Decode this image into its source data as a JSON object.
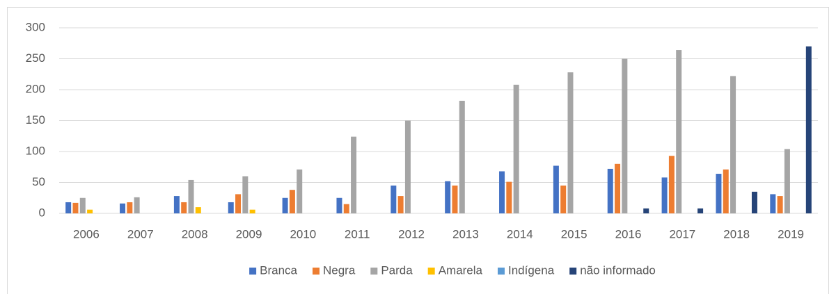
{
  "chart_data": {
    "type": "bar",
    "categories": [
      "2006",
      "2007",
      "2008",
      "2009",
      "2010",
      "2011",
      "2012",
      "2013",
      "2014",
      "2015",
      "2016",
      "2017",
      "2018",
      "2019"
    ],
    "series": [
      {
        "name": "Branca",
        "color": "#4472c4",
        "values": [
          18,
          16,
          28,
          18,
          25,
          25,
          45,
          52,
          68,
          77,
          72,
          58,
          64,
          31
        ]
      },
      {
        "name": "Negra",
        "color": "#ed7d31",
        "values": [
          17,
          18,
          18,
          31,
          38,
          15,
          28,
          45,
          51,
          45,
          80,
          93,
          71,
          28
        ]
      },
      {
        "name": "Parda",
        "color": "#a5a5a5",
        "values": [
          25,
          26,
          54,
          60,
          71,
          124,
          150,
          182,
          208,
          228,
          250,
          264,
          222,
          104
        ]
      },
      {
        "name": "Amarela",
        "color": "#ffc000",
        "values": [
          6,
          0,
          10,
          6,
          0,
          0,
          0,
          0,
          0,
          0,
          0,
          0,
          0,
          0
        ]
      },
      {
        "name": "Indígena",
        "color": "#5b9bd5",
        "values": [
          0,
          0,
          0,
          0,
          0,
          0,
          0,
          0,
          0,
          0,
          0,
          0,
          0,
          0
        ]
      },
      {
        "name": "não informado",
        "color": "#264478",
        "values": [
          0,
          0,
          0,
          0,
          0,
          0,
          0,
          0,
          0,
          0,
          8,
          8,
          35,
          270
        ]
      }
    ],
    "ylim": [
      0,
      300
    ],
    "yticks": [
      0,
      50,
      100,
      150,
      200,
      250,
      300
    ],
    "grid": true,
    "legend": "bottom"
  }
}
